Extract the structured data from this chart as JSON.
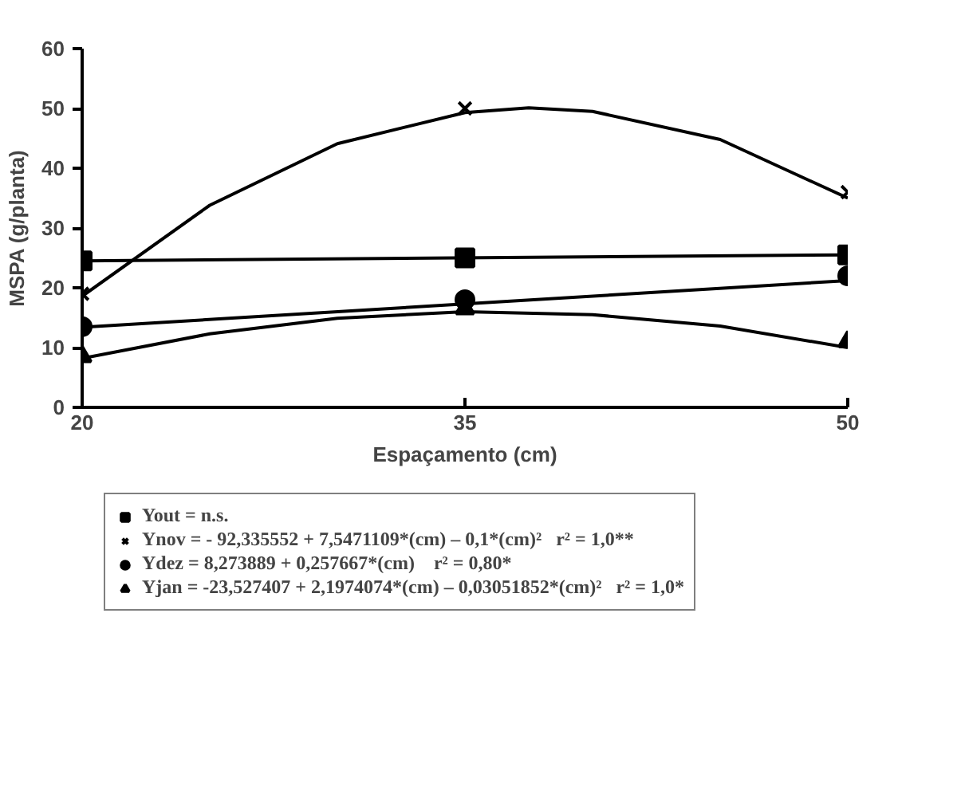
{
  "chart_data": {
    "type": "scatter",
    "xlabel": "Espaçamento (cm)",
    "ylabel": "MSPA (g/planta)",
    "xlim": [
      20,
      50
    ],
    "xticks": [
      20,
      35,
      50
    ],
    "ylim": [
      0,
      60
    ],
    "yticks": [
      0,
      10,
      20,
      30,
      40,
      50,
      60
    ],
    "grid": false,
    "legend": "bottom",
    "series": [
      {
        "name": "Yout = n.s.",
        "marker": "square",
        "color": "#000000",
        "x": [
          20,
          35,
          50
        ],
        "values": [
          24.5,
          25,
          25.5
        ]
      },
      {
        "name": "Ynov = - 92,335552 + 7,5471109*(cm) – 0,1*(cm)²   r² = 1,0**",
        "marker": "cross",
        "color": "#000000",
        "x": [
          20,
          35,
          50
        ],
        "values": [
          19,
          50,
          36
        ]
      },
      {
        "name": "Ydez = 8,273889 + 0,257667*(cm)    r² = 0,80*",
        "marker": "circle",
        "color": "#000000",
        "x": [
          20,
          35,
          50
        ],
        "values": [
          13.5,
          18,
          22
        ]
      },
      {
        "name": "Yjan = -23,527407 + 2,1974074*(cm) – 0,03051852*(cm)²   r² = 1,0*",
        "marker": "triangle",
        "color": "#000000",
        "x": [
          20,
          35,
          50
        ],
        "values": [
          8.5,
          16.5,
          11
        ]
      },
      {
        "type": "line",
        "color": "#000000",
        "x": [
          20,
          50
        ],
        "values": [
          24.5,
          25.5
        ]
      },
      {
        "type": "line",
        "color": "#000000",
        "x": [
          20,
          25,
          30,
          35,
          37.5,
          40,
          45,
          50
        ],
        "values": [
          18.6,
          33.8,
          44.1,
          49.3,
          50.1,
          49.5,
          44.8,
          35.0
        ]
      },
      {
        "type": "line",
        "color": "#000000",
        "x": [
          20,
          50
        ],
        "values": [
          13.4,
          21.2
        ]
      },
      {
        "type": "line",
        "color": "#000000",
        "x": [
          20,
          25,
          30,
          35,
          40,
          45,
          50
        ],
        "values": [
          8.2,
          12.3,
          14.9,
          16.0,
          15.5,
          13.6,
          10.0
        ]
      }
    ]
  }
}
